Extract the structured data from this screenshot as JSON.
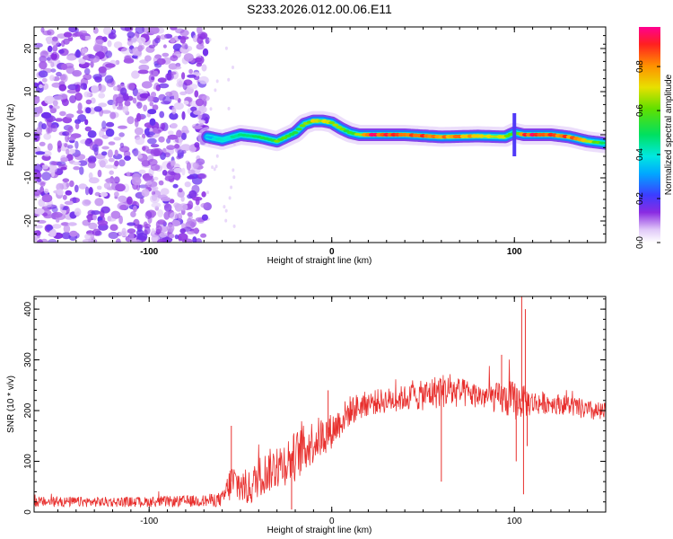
{
  "title": "S233.2026.012.00.06.E11",
  "chart_data": [
    {
      "type": "heatmap",
      "xlabel": "Height of straight line (km)",
      "ylabel": "Frequency (Hz)",
      "xlim": [
        -163,
        150
      ],
      "ylim": [
        -25,
        25
      ],
      "xticks": [
        -100,
        0,
        100
      ],
      "yticks": [
        -20,
        -10,
        0,
        10,
        20
      ],
      "colorbar": {
        "label": "Normalized spectral amplitude",
        "range": [
          0.0,
          0.98
        ],
        "ticks": [
          0.0,
          0.2,
          0.4,
          0.6,
          0.8
        ]
      },
      "noise_region_x": [
        -163,
        -68
      ],
      "ridge": {
        "x": [
          -68,
          -60,
          -50,
          -40,
          -30,
          -20,
          -15,
          -10,
          -5,
          0,
          5,
          10,
          15,
          20,
          40,
          60,
          80,
          95,
          100,
          105,
          120,
          130,
          140,
          150
        ],
        "freq": [
          -0.5,
          -1.2,
          0,
          -0.5,
          -1.5,
          0.5,
          2.5,
          3.2,
          3.2,
          2.8,
          1.5,
          0.5,
          0,
          0,
          0,
          -0.5,
          -0.3,
          -0.5,
          0.5,
          0,
          0,
          -0.5,
          -1.5,
          -2
        ],
        "amp": [
          0.35,
          0.45,
          0.5,
          0.55,
          0.65,
          0.6,
          0.7,
          0.75,
          0.8,
          0.75,
          0.7,
          0.6,
          0.7,
          0.98,
          0.95,
          0.9,
          0.85,
          0.7,
          0.55,
          0.98,
          0.98,
          0.9,
          0.8,
          0.55
        ]
      }
    },
    {
      "type": "line",
      "xlabel": "Height of straight line (km)",
      "ylabel": "SNR (10 * v/v)",
      "xlim": [
        -163,
        150
      ],
      "ylim": [
        0,
        425
      ],
      "xticks": [
        -100,
        0,
        100
      ],
      "yticks": [
        0,
        100,
        200,
        300,
        400
      ],
      "color": "#e8302e",
      "envelope": {
        "x": [
          -163,
          -100,
          -70,
          -60,
          -55,
          -45,
          -40,
          -30,
          -20,
          -10,
          0,
          10,
          20,
          30,
          40,
          50,
          60,
          70,
          80,
          90,
          100,
          110,
          120,
          130,
          140,
          150
        ],
        "mean": [
          20,
          20,
          22,
          25,
          60,
          45,
          70,
          90,
          110,
          140,
          160,
          200,
          215,
          220,
          225,
          230,
          240,
          235,
          230,
          225,
          220,
          215,
          215,
          210,
          200,
          195
        ],
        "spread": [
          10,
          10,
          12,
          15,
          40,
          35,
          40,
          45,
          50,
          45,
          35,
          30,
          25,
          25,
          25,
          30,
          35,
          30,
          25,
          30,
          40,
          25,
          20,
          20,
          20,
          20
        ]
      },
      "spikes": [
        {
          "x": 60,
          "y": 60
        },
        {
          "x": 93,
          "y": 310
        },
        {
          "x": 101,
          "y": 100
        },
        {
          "x": 104,
          "y": 425
        },
        {
          "x": 105,
          "y": 35
        },
        {
          "x": 106,
          "y": 400
        },
        {
          "x": 107,
          "y": 130
        },
        {
          "x": -22,
          "y": 5
        },
        {
          "x": -55,
          "y": 170
        },
        {
          "x": -2,
          "y": 240
        }
      ]
    }
  ]
}
